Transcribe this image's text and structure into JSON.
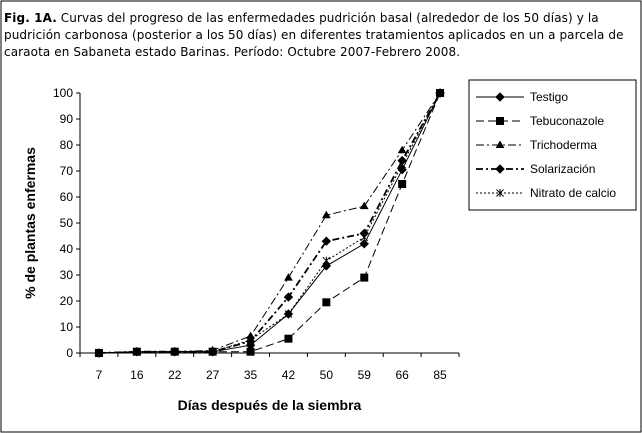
{
  "caption": {
    "label": "Fig. 1A.",
    "text": " Curvas del progreso de las enfermedades pudrición basal (alrededor de los 50 días) y la pudrición carbonosa (posterior a los 50 días) en diferentes tratamientos aplicados en un a parcela de caraota en Sabaneta estado Barinas. Período: Octubre 2007-Febrero 2008."
  },
  "chart_data": {
    "type": "line",
    "x": [
      "7",
      "16",
      "22",
      "27",
      "35",
      "42",
      "50",
      "59",
      "66",
      "85"
    ],
    "xlabel": "Días después de la siembra",
    "ylabel": "% de plantas enfermas",
    "ylim": [
      0,
      100
    ],
    "yticks": [
      0,
      10,
      20,
      30,
      40,
      50,
      60,
      70,
      80,
      90,
      100
    ],
    "grid": false,
    "legend_position": "right",
    "series": [
      {
        "name": "Testigo",
        "marker": "diamond",
        "dash": "solid",
        "values": [
          0,
          0.5,
          0.5,
          0.5,
          3,
          15,
          33.5,
          42,
          70.5,
          100
        ]
      },
      {
        "name": "Tebuconazole",
        "marker": "square",
        "dash": "long-dash",
        "values": [
          0,
          0.5,
          0.5,
          0.5,
          0.5,
          5.5,
          19.5,
          29,
          65,
          100
        ]
      },
      {
        "name": "Trichoderma",
        "marker": "triangle",
        "dash": "dash-dot",
        "values": [
          0,
          0.5,
          0.5,
          1,
          6.5,
          29,
          53,
          56.5,
          78,
          100
        ]
      },
      {
        "name": "Solarización",
        "marker": "diamond",
        "dash": "bold-dash-dot",
        "values": [
          0,
          0.5,
          0.5,
          0.5,
          4.5,
          21.5,
          43,
          46,
          74,
          100
        ]
      },
      {
        "name": "Nitrato de calcio",
        "marker": "star",
        "dash": "dotted",
        "values": [
          0,
          0.5,
          0.5,
          0.5,
          5,
          15,
          35.5,
          44.5,
          72.5,
          100
        ]
      }
    ]
  }
}
